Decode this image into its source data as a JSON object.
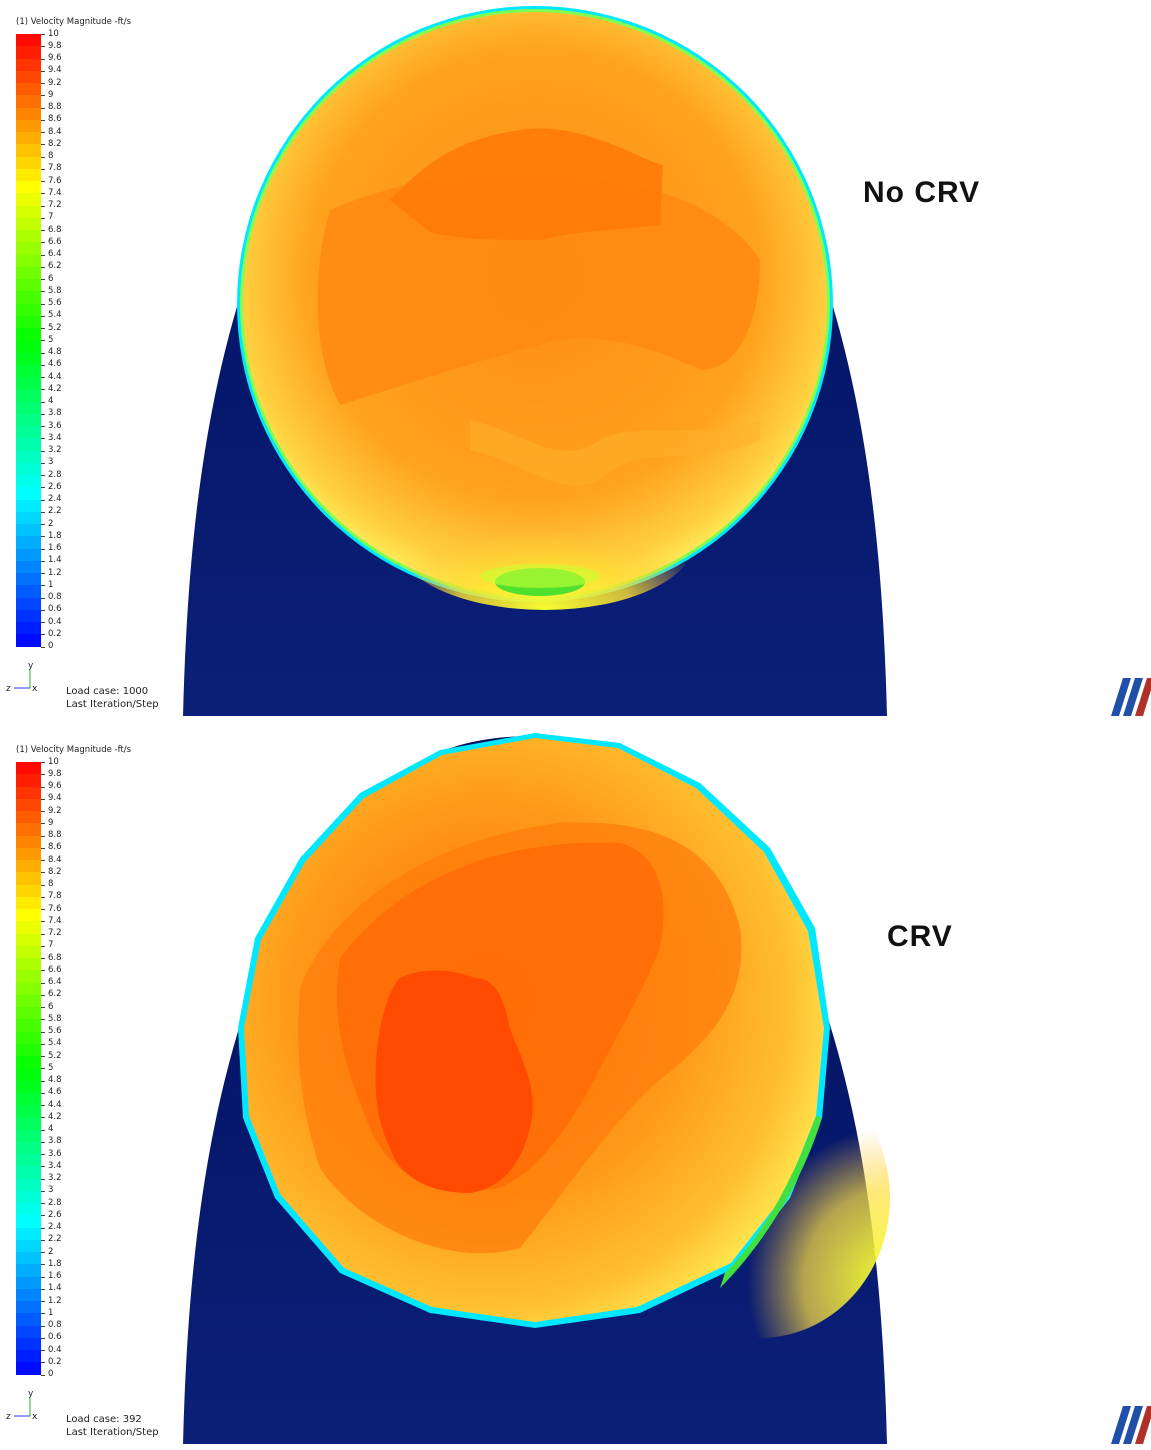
{
  "legend": {
    "title": "(1) Velocity Magnitude -ft/s",
    "ticks": [
      "10",
      "9.8",
      "9.6",
      "9.4",
      "9.2",
      "9",
      "8.8",
      "8.6",
      "8.4",
      "8.2",
      "8",
      "7.8",
      "7.6",
      "7.4",
      "7.2",
      "7",
      "6.8",
      "6.6",
      "6.4",
      "6.2",
      "6",
      "5.8",
      "5.6",
      "5.4",
      "5.2",
      "5",
      "4.8",
      "4.6",
      "4.4",
      "4.2",
      "4",
      "3.8",
      "3.6",
      "3.4",
      "3.2",
      "3",
      "2.8",
      "2.6",
      "2.4",
      "2.2",
      "2",
      "1.8",
      "1.6",
      "1.4",
      "1.2",
      "1",
      "0.8",
      "0.6",
      "0.4",
      "0.2",
      "0"
    ],
    "min": 0,
    "max": 10,
    "colormap": [
      "#0000ff",
      "#00ffff",
      "#00ff00",
      "#ffff00",
      "#ff0000"
    ]
  },
  "panels": [
    {
      "case_label": "No CRV",
      "load_case": "Load case: 1000",
      "iteration": "Last Iteration/Step",
      "axis_labels": {
        "y": "y",
        "z": "z",
        "x": "x"
      }
    },
    {
      "case_label": "CRV",
      "load_case": "Load case: 392",
      "iteration": "Last Iteration/Step",
      "axis_labels": {
        "y": "y",
        "z": "z",
        "x": "x"
      }
    }
  ],
  "colors": {
    "background_body": "#04166b",
    "rim": "#00e0ff",
    "high": "#ff4a00",
    "mid_high": "#ff8a10",
    "mid": "#ffb020",
    "low": "#ffe84a",
    "lower": "#e8ff40",
    "green": "#30e030"
  }
}
